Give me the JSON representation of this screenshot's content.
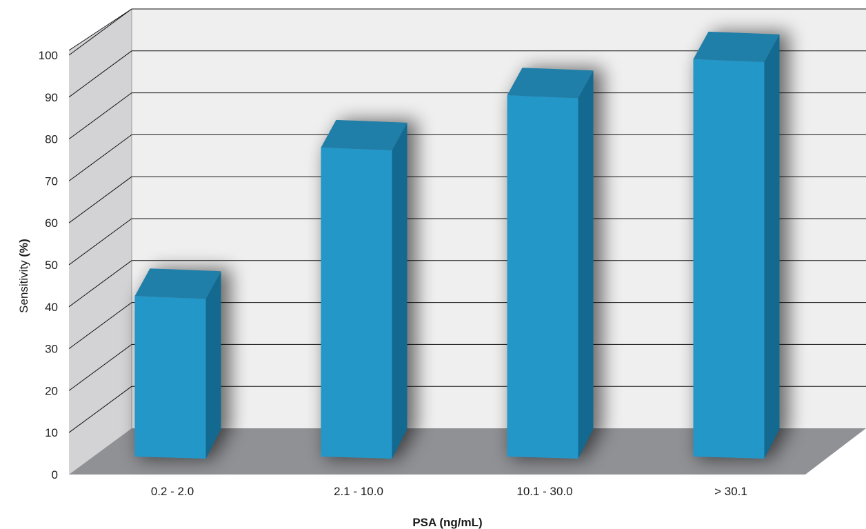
{
  "chart_data": {
    "type": "bar",
    "categories": [
      "0.2 - 2.0",
      "2.1 - 10.0",
      "10.1 - 30.0",
      "> 30.1"
    ],
    "values": [
      40,
      77,
      90,
      99
    ],
    "xlabel": "PSA (ng/mL)",
    "ylabel_text": "Sensitivity ",
    "ylabel_unit": "(%)",
    "ylim": [
      0,
      100
    ],
    "yticks": [
      "0",
      "10",
      "20",
      "30",
      "40",
      "50",
      "60",
      "70",
      "80",
      "90",
      "100"
    ],
    "grid": true,
    "style": "3d",
    "colors": {
      "bar_front": "#2497c9",
      "bar_top": "#1f7fa9",
      "bar_side": "#136990",
      "back_wall": "#efefef",
      "side_wall": "#d3d3d5",
      "floor": "#909195",
      "grid": "#111111"
    }
  }
}
